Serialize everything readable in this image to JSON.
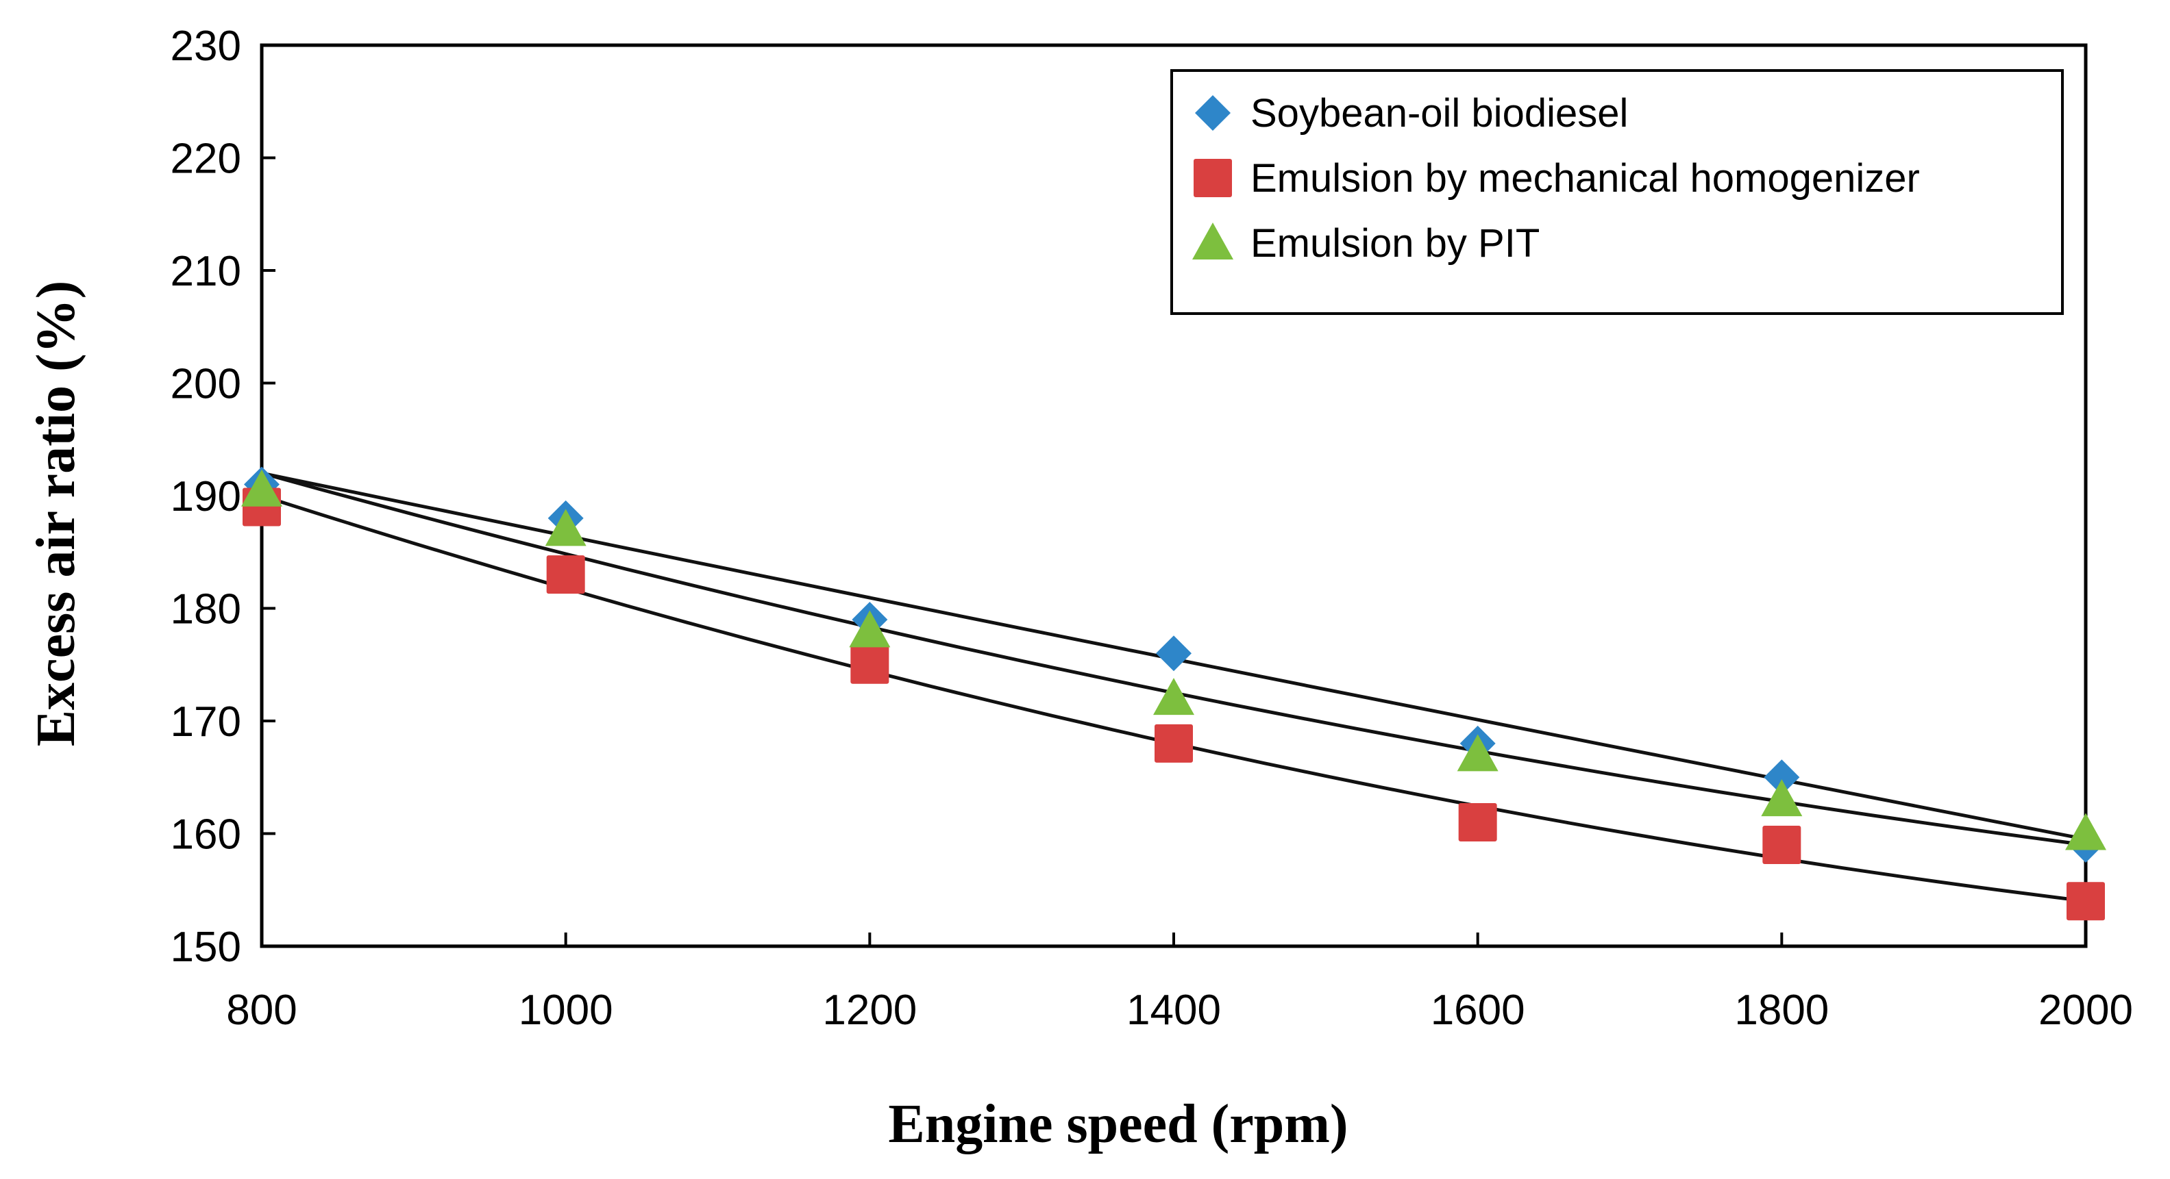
{
  "chart_data": {
    "type": "scatter",
    "title": "",
    "xlabel": "Engine speed (rpm)",
    "ylabel": "Excess air ratio (%)",
    "xlim": [
      800,
      2000
    ],
    "ylim": [
      150,
      230
    ],
    "xticks": [
      800,
      1000,
      1200,
      1400,
      1600,
      1800,
      2000
    ],
    "yticks": [
      150,
      160,
      170,
      180,
      190,
      200,
      210,
      220,
      230
    ],
    "grid": false,
    "legend_position": "top-right",
    "x": [
      800,
      1000,
      1200,
      1400,
      1600,
      1800,
      2000
    ],
    "series": [
      {
        "name": "Soybean-oil biodiesel",
        "marker": "diamond",
        "color": "#2E86C9",
        "values": [
          191,
          188,
          179,
          176,
          168,
          165,
          159
        ]
      },
      {
        "name": "Emulsion by mechanical homogenizer",
        "marker": "square",
        "color": "#D94040",
        "values": [
          189,
          183,
          175,
          168,
          161,
          159,
          154
        ]
      },
      {
        "name": "Emulsion by PIT",
        "marker": "triangle",
        "color": "#7DBF3E",
        "values": [
          190.5,
          187,
          178,
          172,
          167,
          163,
          160
        ]
      }
    ],
    "trendlines": [
      {
        "name": "Soybean-oil biodiesel",
        "x": [
          800,
          1400,
          2000
        ],
        "y": [
          192,
          175.5,
          159.5
        ]
      },
      {
        "name": "Emulsion by PIT",
        "x": [
          800,
          1400,
          2000
        ],
        "y": [
          192,
          172.5,
          159
        ]
      },
      {
        "name": "Emulsion by mechanical homogenizer",
        "x": [
          800,
          1400,
          2000
        ],
        "y": [
          190,
          168,
          154
        ]
      }
    ]
  }
}
